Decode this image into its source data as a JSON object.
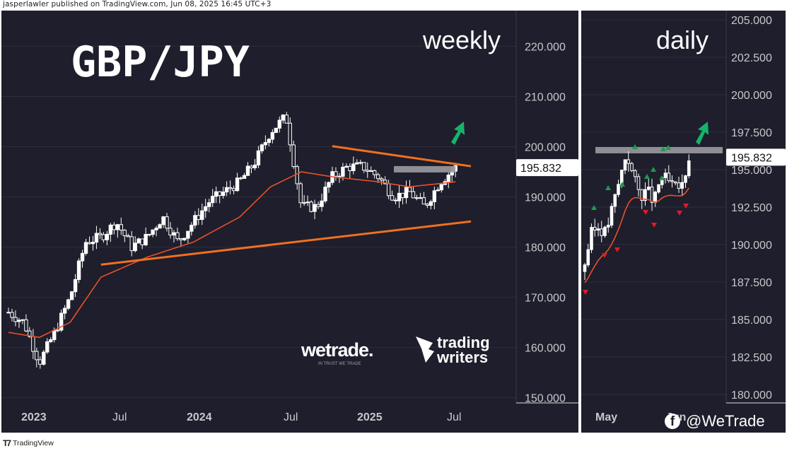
{
  "attribution": "jasperlawler published on TradingView.com, Jun 08, 2025 16:45 UTC+3",
  "footer_brand": "TradingView",
  "social": {
    "platform_icon": "facebook-icon",
    "handle": "@WeTrade"
  },
  "logos": {
    "wetrade": "wetrade.",
    "wetrade_tagline": "IN TRUST WE TRADE",
    "trading_writers_line1": "trading",
    "trading_writers_line2": "writers"
  },
  "colors": {
    "background": "#1e1e2c",
    "candle_up": "#ffffff",
    "candle_down": "#ffffff",
    "moving_average": "#e8502a",
    "trendline": "#f0701e",
    "resistance_zone": "#9a9aa0",
    "arrow": "#16b36b",
    "buy_marker": "#1e9a4a",
    "sell_marker": "#e21b25"
  },
  "chart_data": [
    {
      "type": "candlestick",
      "title": "GBP/JPY",
      "timeframe_label": "weekly",
      "x_tick_labels": [
        "2023",
        "Jul",
        "2024",
        "Jul",
        "2025",
        "Jul"
      ],
      "y_tick_labels": [
        "220.000",
        "210.000",
        "200.000",
        "190.000",
        "180.000",
        "170.000",
        "160.000",
        "150.000"
      ],
      "ylim": [
        145,
        225
      ],
      "last_price": 195.832,
      "last_price_label": "195.832",
      "approx_close_path": [
        {
          "date": "2023-01",
          "close": 167
        },
        {
          "date": "2023-02",
          "close": 165
        },
        {
          "date": "2023-03",
          "close": 157
        },
        {
          "date": "2023-04",
          "close": 163
        },
        {
          "date": "2023-05",
          "close": 170
        },
        {
          "date": "2023-06",
          "close": 181
        },
        {
          "date": "2023-07",
          "close": 182
        },
        {
          "date": "2023-08",
          "close": 185
        },
        {
          "date": "2023-09",
          "close": 180
        },
        {
          "date": "2023-10",
          "close": 182
        },
        {
          "date": "2023-11",
          "close": 186
        },
        {
          "date": "2023-12",
          "close": 181
        },
        {
          "date": "2024-01",
          "close": 185
        },
        {
          "date": "2024-02",
          "close": 189
        },
        {
          "date": "2024-03",
          "close": 191
        },
        {
          "date": "2024-04",
          "close": 193
        },
        {
          "date": "2024-05",
          "close": 197
        },
        {
          "date": "2024-06",
          "close": 203
        },
        {
          "date": "2024-07",
          "close": 206
        },
        {
          "date": "2024-08",
          "close": 188
        },
        {
          "date": "2024-09",
          "close": 188
        },
        {
          "date": "2024-10",
          "close": 194
        },
        {
          "date": "2024-11",
          "close": 196
        },
        {
          "date": "2024-12",
          "close": 196
        },
        {
          "date": "2025-01",
          "close": 194
        },
        {
          "date": "2025-02",
          "close": 190
        },
        {
          "date": "2025-03",
          "close": 191
        },
        {
          "date": "2025-04",
          "close": 188
        },
        {
          "date": "2025-05",
          "close": 193
        },
        {
          "date": "2025-06",
          "close": 195.832
        }
      ],
      "moving_average_approx": [
        {
          "date": "2023-01",
          "value": 163
        },
        {
          "date": "2023-03",
          "value": 162
        },
        {
          "date": "2023-05",
          "value": 165
        },
        {
          "date": "2023-07",
          "value": 174
        },
        {
          "date": "2023-10",
          "value": 178
        },
        {
          "date": "2024-01",
          "value": 181
        },
        {
          "date": "2024-04",
          "value": 186
        },
        {
          "date": "2024-06",
          "value": 192
        },
        {
          "date": "2024-08",
          "value": 195
        },
        {
          "date": "2024-10",
          "value": 194
        },
        {
          "date": "2025-01",
          "value": 193
        },
        {
          "date": "2025-03",
          "value": 192
        },
        {
          "date": "2025-06",
          "value": 193
        }
      ],
      "support_trendline": [
        {
          "date": "2023-07",
          "price": 176.5
        },
        {
          "date": "2025-07",
          "price": 185.1
        }
      ],
      "resistance_trendline": [
        {
          "date": "2024-10",
          "price": 200.1
        },
        {
          "date": "2025-07",
          "price": 196.1
        }
      ],
      "resistance_zone": {
        "date_from": "2025-02",
        "date_to": "2025-06",
        "price": 195.5
      }
    },
    {
      "type": "candlestick",
      "timeframe_label": "daily",
      "x_tick_labels": [
        "May",
        "Jun"
      ],
      "y_tick_labels": [
        "205.000",
        "202.500",
        "200.000",
        "197.500",
        "195.000",
        "192.500",
        "190.000",
        "187.500",
        "185.000",
        "182.500",
        "180.000"
      ],
      "ylim": [
        178.7,
        206.2
      ],
      "last_price": 195.832,
      "last_price_label": "195.832",
      "approx_close_path": [
        {
          "date": "Apr-24",
          "close": 188.8
        },
        {
          "date": "Apr-28",
          "close": 190.8
        },
        {
          "date": "May-01",
          "close": 191.2
        },
        {
          "date": "May-05",
          "close": 190.8
        },
        {
          "date": "May-07",
          "close": 192.5
        },
        {
          "date": "May-09",
          "close": 194.3
        },
        {
          "date": "May-12",
          "close": 196.2
        },
        {
          "date": "May-14",
          "close": 194.5
        },
        {
          "date": "May-16",
          "close": 193.3
        },
        {
          "date": "May-20",
          "close": 193.6
        },
        {
          "date": "May-22",
          "close": 192.8
        },
        {
          "date": "May-26",
          "close": 194.6
        },
        {
          "date": "May-28",
          "close": 194.2
        },
        {
          "date": "May-30",
          "close": 193.7
        },
        {
          "date": "Jun-03",
          "close": 193.9
        },
        {
          "date": "Jun-05",
          "close": 195.832
        }
      ],
      "resistance_zone": {
        "price": 196.3
      }
    }
  ]
}
